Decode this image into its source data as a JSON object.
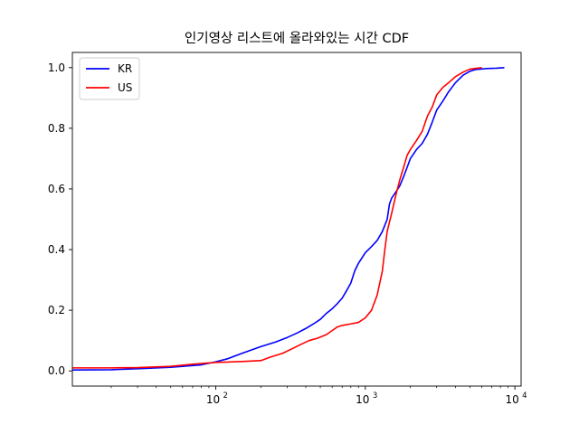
{
  "chart_data": {
    "type": "line",
    "title": "인기영상 리스트에 올라와있는 시간 CDF",
    "xlabel": "",
    "ylabel": "",
    "xscale": "log",
    "xlim": [
      11,
      11000
    ],
    "ylim": [
      -0.05,
      1.05
    ],
    "x_ticks": [
      100,
      1000,
      10000
    ],
    "x_tick_labels": [
      "10",
      "10",
      "10"
    ],
    "x_tick_exponents": [
      "2",
      "3",
      "4"
    ],
    "y_ticks": [
      0.0,
      0.2,
      0.4,
      0.6,
      0.8,
      1.0
    ],
    "y_tick_labels": [
      "0.0",
      "0.2",
      "0.4",
      "0.6",
      "0.8",
      "1.0"
    ],
    "grid": false,
    "legend_position": "top-left",
    "series": [
      {
        "name": "KR",
        "color": "#0000ff",
        "points": [
          [
            11,
            0.003
          ],
          [
            20,
            0.004
          ],
          [
            30,
            0.007
          ],
          [
            50,
            0.012
          ],
          [
            80,
            0.02
          ],
          [
            100,
            0.03
          ],
          [
            120,
            0.04
          ],
          [
            150,
            0.058
          ],
          [
            200,
            0.08
          ],
          [
            250,
            0.095
          ],
          [
            300,
            0.11
          ],
          [
            350,
            0.125
          ],
          [
            400,
            0.14
          ],
          [
            450,
            0.155
          ],
          [
            500,
            0.17
          ],
          [
            550,
            0.19
          ],
          [
            600,
            0.205
          ],
          [
            650,
            0.222
          ],
          [
            700,
            0.24
          ],
          [
            750,
            0.265
          ],
          [
            800,
            0.29
          ],
          [
            850,
            0.33
          ],
          [
            900,
            0.355
          ],
          [
            1000,
            0.39
          ],
          [
            1100,
            0.41
          ],
          [
            1200,
            0.43
          ],
          [
            1300,
            0.46
          ],
          [
            1350,
            0.48
          ],
          [
            1400,
            0.5
          ],
          [
            1450,
            0.55
          ],
          [
            1500,
            0.57
          ],
          [
            1600,
            0.59
          ],
          [
            1700,
            0.61
          ],
          [
            1800,
            0.64
          ],
          [
            1900,
            0.67
          ],
          [
            2000,
            0.7
          ],
          [
            2200,
            0.73
          ],
          [
            2400,
            0.75
          ],
          [
            2600,
            0.78
          ],
          [
            2800,
            0.82
          ],
          [
            3000,
            0.86
          ],
          [
            3300,
            0.89
          ],
          [
            3600,
            0.92
          ],
          [
            4000,
            0.95
          ],
          [
            4500,
            0.975
          ],
          [
            5000,
            0.988
          ],
          [
            5500,
            0.994
          ],
          [
            6500,
            0.997
          ],
          [
            7500,
            0.998
          ],
          [
            8500,
            1.0
          ]
        ]
      },
      {
        "name": "US",
        "color": "#ff0000",
        "points": [
          [
            11,
            0.01
          ],
          [
            20,
            0.01
          ],
          [
            30,
            0.011
          ],
          [
            50,
            0.015
          ],
          [
            70,
            0.022
          ],
          [
            100,
            0.028
          ],
          [
            150,
            0.031
          ],
          [
            200,
            0.034
          ],
          [
            230,
            0.045
          ],
          [
            280,
            0.058
          ],
          [
            330,
            0.075
          ],
          [
            380,
            0.09
          ],
          [
            420,
            0.1
          ],
          [
            480,
            0.108
          ],
          [
            550,
            0.12
          ],
          [
            600,
            0.133
          ],
          [
            650,
            0.145
          ],
          [
            700,
            0.15
          ],
          [
            800,
            0.155
          ],
          [
            900,
            0.16
          ],
          [
            1000,
            0.175
          ],
          [
            1100,
            0.2
          ],
          [
            1200,
            0.25
          ],
          [
            1300,
            0.33
          ],
          [
            1350,
            0.4
          ],
          [
            1400,
            0.46
          ],
          [
            1500,
            0.52
          ],
          [
            1600,
            0.58
          ],
          [
            1700,
            0.63
          ],
          [
            1800,
            0.67
          ],
          [
            1900,
            0.71
          ],
          [
            2000,
            0.73
          ],
          [
            2200,
            0.76
          ],
          [
            2400,
            0.79
          ],
          [
            2600,
            0.84
          ],
          [
            2800,
            0.87
          ],
          [
            3000,
            0.91
          ],
          [
            3300,
            0.935
          ],
          [
            3600,
            0.95
          ],
          [
            4000,
            0.97
          ],
          [
            4500,
            0.985
          ],
          [
            5000,
            0.995
          ],
          [
            6000,
            1.0
          ]
        ]
      }
    ]
  }
}
